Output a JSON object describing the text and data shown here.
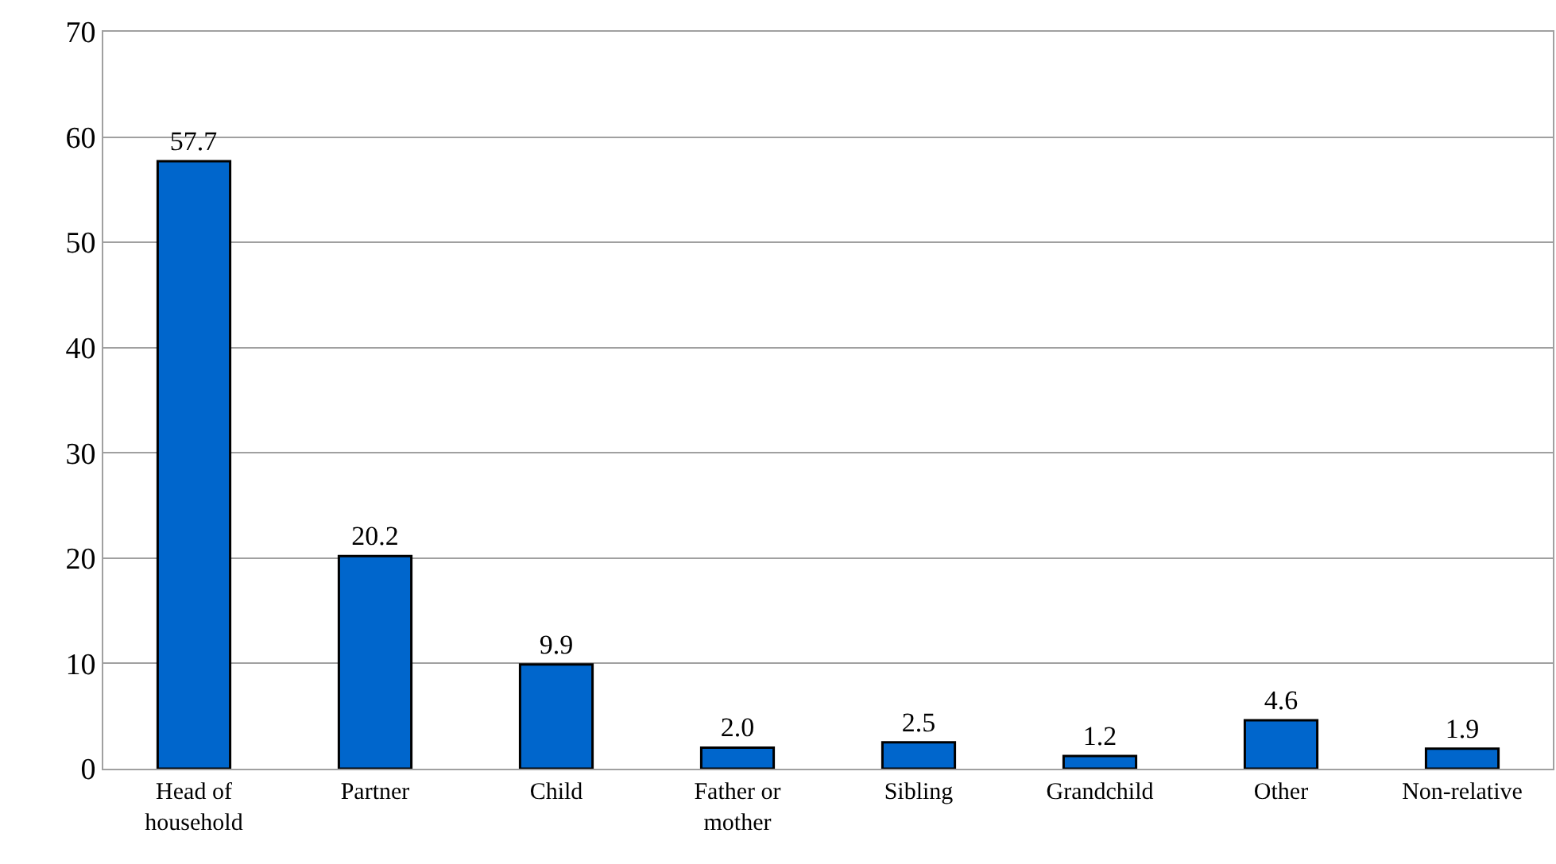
{
  "chart_data": {
    "type": "bar",
    "categories": [
      "Head of household",
      "Partner",
      "Child",
      "Father or mother",
      "Sibling",
      "Grandchild",
      "Other",
      "Non-relative"
    ],
    "values": [
      57.7,
      20.2,
      9.9,
      2.0,
      2.5,
      1.2,
      4.6,
      1.9
    ],
    "value_labels": [
      "57.7",
      "20.2",
      "9.9",
      "2.0",
      "2.5",
      "1.2",
      "4.6",
      "1.9"
    ],
    "color": "#0066cc",
    "ylim": [
      0,
      70
    ],
    "yticks": [
      0,
      10,
      20,
      30,
      40,
      50,
      60,
      70
    ],
    "grid": "y"
  }
}
